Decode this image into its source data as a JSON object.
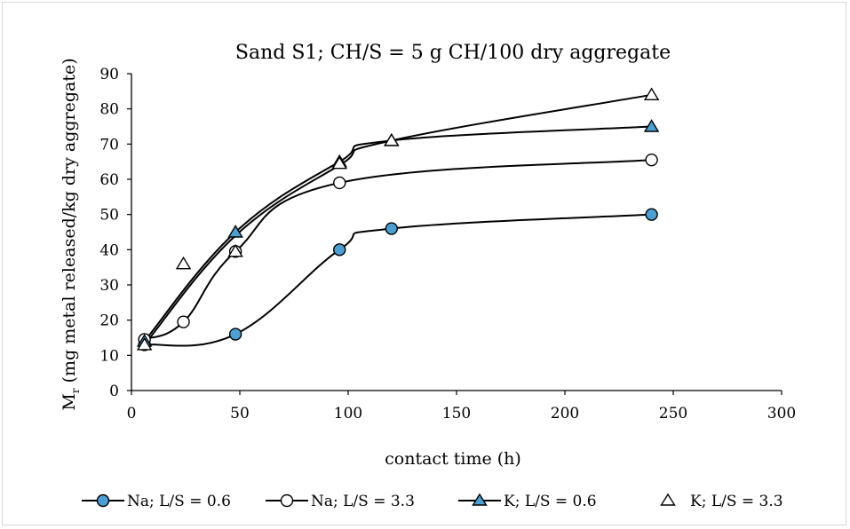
{
  "chart_data": {
    "type": "scatter",
    "title": "Sand S1; CH/S = 5 g CH/100 dry aggregate",
    "xlabel": "contact time (h)",
    "ylabel_main": "M",
    "ylabel_sub": "r",
    "ylabel_rest": " (mg metal released/kg dry aggregate)",
    "xlim": [
      0,
      300
    ],
    "ylim": [
      0,
      90
    ],
    "xticks": [
      0,
      50,
      100,
      150,
      200,
      250,
      300
    ],
    "yticks": [
      0,
      10,
      20,
      30,
      40,
      50,
      60,
      70,
      80,
      90
    ],
    "grid": false,
    "legend_position": "bottom",
    "series": [
      {
        "name": "Na; L/S = 0.6",
        "marker": "circle",
        "fill": "#4a9fd4",
        "line": true,
        "x": [
          6,
          48,
          96,
          120,
          240
        ],
        "y": [
          13,
          16,
          40,
          46,
          50
        ]
      },
      {
        "name": "Na; L/S = 3.3",
        "marker": "circle",
        "fill": "#ffffff",
        "line": true,
        "x": [
          6,
          24,
          48,
          96,
          240
        ],
        "y": [
          14.5,
          19.5,
          39.5,
          59,
          65.5
        ]
      },
      {
        "name": "K; L/S = 0.6",
        "marker": "triangle",
        "fill": "#4a9fd4",
        "line": true,
        "x": [
          6,
          48,
          96,
          120,
          240
        ],
        "y": [
          14,
          45,
          65,
          71,
          75
        ]
      },
      {
        "name": "K; L/S = 3.3",
        "marker": "triangle",
        "fill": "#ffffff",
        "line": false,
        "x": [
          6,
          24,
          48,
          96,
          120,
          240
        ],
        "y": [
          13,
          36,
          39.5,
          64.5,
          71,
          84
        ]
      }
    ],
    "trend_lines": [
      {
        "name": "K; L/S = 3.3 trend",
        "x": [
          6,
          48,
          96,
          120,
          240
        ],
        "y": [
          13,
          44,
          64,
          71,
          84
        ]
      }
    ]
  }
}
